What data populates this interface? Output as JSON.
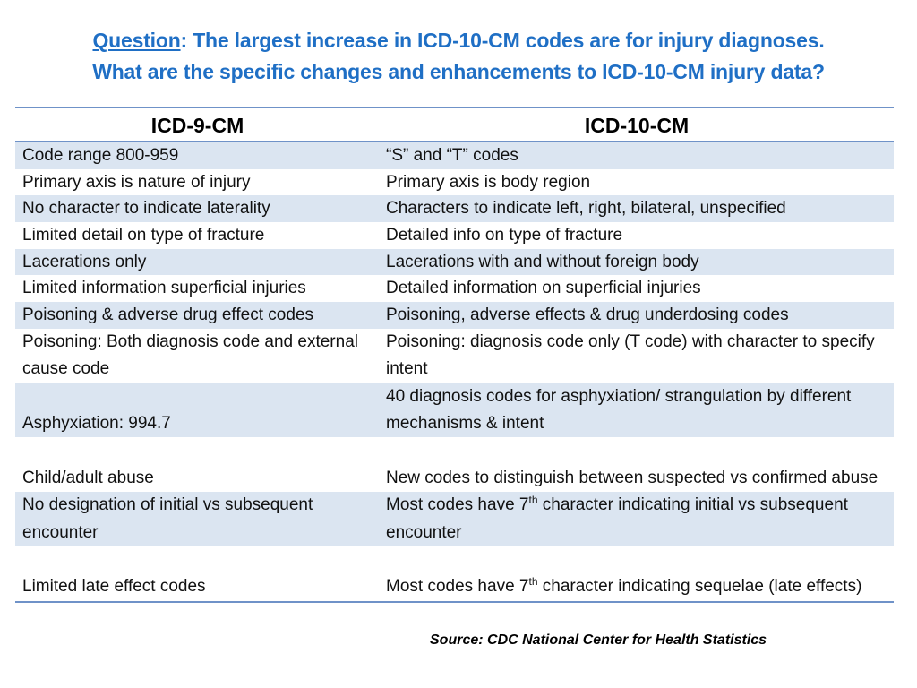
{
  "title": {
    "question_label": "Question",
    "line1_rest": ":  The largest increase in ICD-10-CM codes are for injury diagnoses.",
    "line2": "What are the specific changes and enhancements to ICD-10-CM injury data?"
  },
  "table": {
    "headers": [
      "ICD-9-CM",
      "ICD-10-CM"
    ],
    "rows": [
      {
        "icd9": "Code range 800-959",
        "icd10": "“S” and “T” codes"
      },
      {
        "icd9": "Primary axis is nature of injury",
        "icd10": "Primary axis is body region"
      },
      {
        "icd9": "No character to indicate laterality",
        "icd10": "Characters  to indicate left,  right, bilateral, unspecified"
      },
      {
        "icd9": "Limited detail on type of fracture",
        "icd10": "Detailed info on type of fracture"
      },
      {
        "icd9": "Lacerations only",
        "icd10": "Lacerations  with and without foreign body"
      },
      {
        "icd9": "Limited information superficial injuries",
        "icd10": "Detailed information on superficial injuries"
      },
      {
        "icd9": "Poisoning  & adverse  drug effect codes",
        "icd10": "Poisoning, adverse effects  & drug underdosing codes"
      },
      {
        "icd9": "Poisoning: Both diagnosis code and external cause code",
        "icd10": "Poisoning: diagnosis code only (T code)  with character to specify intent"
      },
      {
        "icd9": "Asphyxiation: 994.7",
        "icd10": "40 diagnosis codes for asphyxiation/  strangulation by different mechanisms  & intent"
      },
      {
        "icd9": "Child/adult abuse",
        "icd10": "New codes to distinguish between  suspected vs confirmed abuse"
      },
      {
        "icd9": "No designation of initial vs subsequent encounter",
        "icd10_pre": "Most codes have 7",
        "icd10_sup": "th",
        "icd10_post": " character  indicating initial vs subsequent  encounter"
      },
      {
        "icd9": "Limited late effect codes",
        "icd10_pre": "Most codes have 7",
        "icd10_sup": "th",
        "icd10_post": " character  indicating sequelae (late effects)"
      }
    ]
  },
  "source": "Source: CDC National Center for Health Statistics",
  "colors": {
    "title": "#1f6fc5",
    "row_shade": "#dbe5f1",
    "rule": "#6f92c8"
  }
}
